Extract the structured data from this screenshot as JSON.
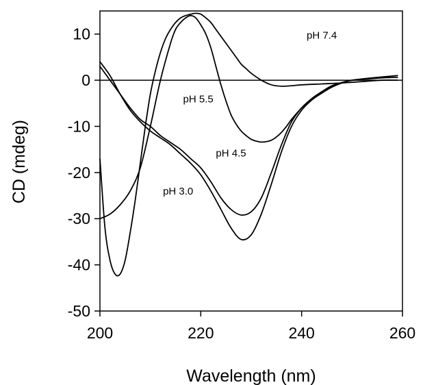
{
  "chart_data": {
    "type": "line",
    "xlabel": "Wavelength (nm)",
    "ylabel": "CD (mdeg)",
    "xlim": [
      200,
      260
    ],
    "ylim": [
      -50,
      15
    ],
    "x_ticks": [
      200,
      220,
      240,
      260
    ],
    "y_ticks": [
      10,
      0,
      -10,
      -20,
      -30,
      -40,
      -50
    ],
    "zero_line": true,
    "grid": false,
    "legend": "inline labels",
    "series": [
      {
        "name": "pH 7.4",
        "x": [
          200,
          201,
          202,
          203,
          204,
          205,
          206,
          207,
          208,
          209,
          210,
          211,
          212,
          213,
          214,
          215,
          216,
          217,
          218,
          219,
          220,
          221,
          222,
          223,
          224,
          225,
          226,
          227,
          228,
          229,
          230,
          232,
          234,
          236,
          238,
          240,
          244,
          248,
          252,
          256,
          259
        ],
        "values": [
          -17,
          -32,
          -39,
          -42,
          -42,
          -39,
          -33,
          -26,
          -18,
          -10,
          -3,
          2,
          6,
          9,
          11,
          12.5,
          13.5,
          14,
          14.3,
          14.5,
          14.3,
          13.5,
          12.5,
          11,
          9.5,
          8,
          6.5,
          5,
          3.5,
          2.5,
          1.5,
          0,
          -1,
          -1.3,
          -1.2,
          -1,
          -0.8,
          -0.6,
          -0.3,
          0,
          0
        ]
      },
      {
        "name": "pH 5.5",
        "x": [
          200,
          202,
          204,
          206,
          208,
          210,
          212,
          214,
          215,
          216,
          217,
          218,
          219,
          220,
          221,
          222,
          223,
          224,
          225,
          226,
          227,
          228,
          229,
          230,
          231,
          232,
          233,
          234,
          235,
          236,
          237,
          238,
          240,
          242,
          244,
          246,
          248,
          250,
          252,
          256,
          259
        ],
        "values": [
          -30,
          -29,
          -27,
          -24,
          -19,
          -10,
          0,
          8,
          11,
          12.5,
          13.5,
          14,
          13.5,
          12,
          10,
          7,
          3,
          -1,
          -4.5,
          -7.5,
          -9.5,
          -11,
          -12,
          -12.8,
          -13.2,
          -13.4,
          -13.3,
          -13,
          -12.3,
          -11.3,
          -10,
          -8.5,
          -6,
          -4,
          -2.5,
          -1.2,
          -0.5,
          0,
          0.2,
          0.5,
          0.6
        ]
      },
      {
        "name": "pH 4.5",
        "x": [
          200,
          202,
          204,
          206,
          208,
          210,
          212,
          214,
          216,
          218,
          220,
          222,
          224,
          226,
          228,
          230,
          232,
          234,
          236,
          238,
          240,
          242,
          244,
          246,
          248,
          250,
          254,
          259
        ],
        "values": [
          3,
          0,
          -3,
          -6,
          -8.5,
          -10,
          -12,
          -13.5,
          -15,
          -17,
          -19,
          -22,
          -25.5,
          -28,
          -29.2,
          -28.5,
          -25.5,
          -20,
          -14,
          -9,
          -6,
          -4,
          -2.5,
          -1.2,
          -0.5,
          0,
          0.5,
          1
        ]
      },
      {
        "name": "pH 3.0",
        "x": [
          200,
          202,
          204,
          206,
          208,
          210,
          212,
          214,
          216,
          218,
          220,
          222,
          224,
          226,
          228,
          230,
          232,
          234,
          236,
          238,
          240,
          242,
          244,
          246,
          248,
          250,
          254,
          259
        ],
        "values": [
          4,
          1,
          -3,
          -6.5,
          -9,
          -11,
          -12.5,
          -14,
          -16,
          -18,
          -20.5,
          -24,
          -28,
          -32,
          -34.5,
          -33.5,
          -29,
          -22.5,
          -15.5,
          -10,
          -6.5,
          -4.3,
          -2.8,
          -1.5,
          -0.6,
          0,
          0.5,
          1
        ]
      }
    ]
  }
}
